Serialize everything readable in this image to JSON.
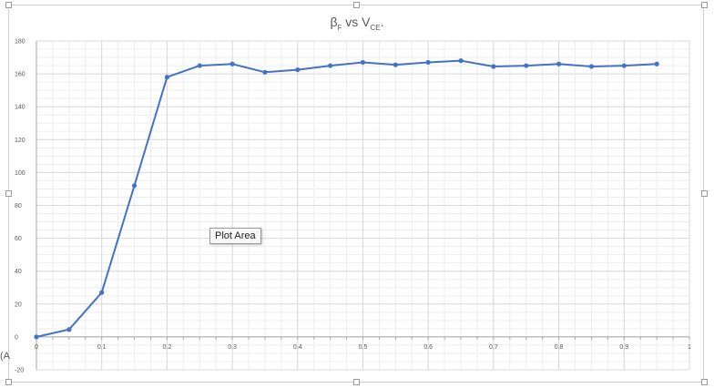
{
  "chart_data": {
    "type": "scatter",
    "title_main": "β",
    "title_sub1": "F",
    "title_mid": " vs V",
    "title_sub2": "CE",
    "title_end": ".",
    "series": [
      {
        "color": "#4472c4",
        "x": [
          0,
          0.05,
          0.1,
          0.15,
          0.2,
          0.25,
          0.3,
          0.35,
          0.4,
          0.45,
          0.5,
          0.55,
          0.6,
          0.65,
          0.7,
          0.75,
          0.8,
          0.85,
          0.9,
          0.95
        ],
        "y": [
          0,
          4.5,
          27,
          92,
          158,
          165,
          166,
          161,
          162.5,
          165,
          167,
          165.5,
          167,
          168,
          164.5,
          165,
          166,
          164.5,
          165,
          166
        ]
      }
    ],
    "xlim": [
      0,
      1
    ],
    "ylim": [
      -20,
      180
    ],
    "xticks": [
      "0",
      "0.1",
      "0.2",
      "0.3",
      "0.4",
      "0.5",
      "0.6",
      "0.7",
      "0.8",
      "0.9",
      "1"
    ],
    "yticks": [
      "-20",
      "0",
      "20",
      "40",
      "60",
      "80",
      "100",
      "120",
      "140",
      "160",
      "180"
    ],
    "grid": true,
    "minor_grid": true
  },
  "tooltip": "Plot Area",
  "edge_label": "(A"
}
